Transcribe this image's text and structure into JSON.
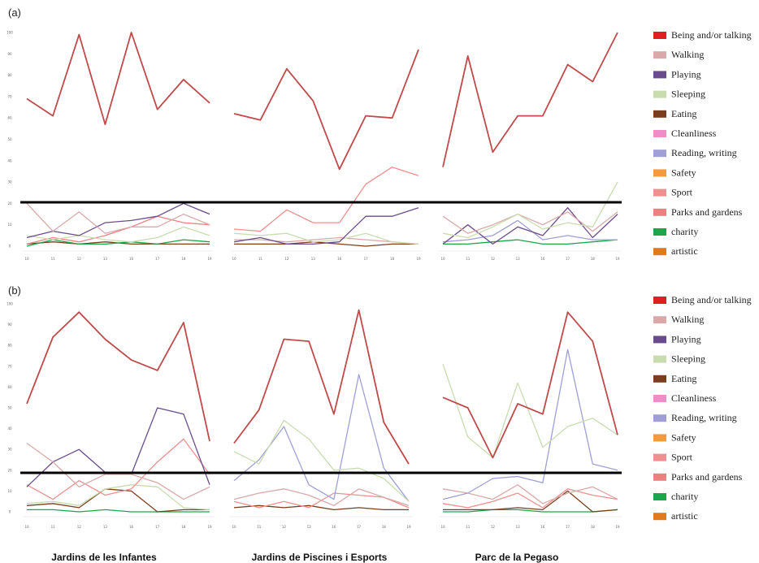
{
  "panels": [
    {
      "label": "(a)"
    },
    {
      "label": "(b)"
    }
  ],
  "sites": [
    "Jardins de les Infantes",
    "Jardins de Piscines i Esports",
    "Parc de la Pegaso"
  ],
  "legend": [
    {
      "name": "Being and/or talking",
      "color": "#e02020"
    },
    {
      "name": "Walking",
      "color": "#d9a9a9"
    },
    {
      "name": "Playing",
      "color": "#6a4c8c"
    },
    {
      "name": "Sleeping",
      "color": "#c9dcb0"
    },
    {
      "name": "Eating",
      "color": "#7a3e1e"
    },
    {
      "name": "Cleanliness",
      "color": "#f08cc8"
    },
    {
      "name": "Reading, writing",
      "color": "#9f9fd6"
    },
    {
      "name": "Safety",
      "color": "#f29a3c"
    },
    {
      "name": "Sport",
      "color": "#ef8f8f"
    },
    {
      "name": "Parks and gardens",
      "color": "#eb8080"
    },
    {
      "name": "charity",
      "color": "#1aa64a"
    },
    {
      "name": "artistic",
      "color": "#e07a1c"
    }
  ],
  "chart_data": [
    {
      "type": "line",
      "panel": "(a)",
      "y_ticks": [
        "0",
        "10",
        "20",
        "30",
        "40",
        "50",
        "60",
        "70",
        "80",
        "90",
        "100"
      ],
      "x_ticks": [
        "10",
        "11",
        "12",
        "13",
        "16",
        "17",
        "18",
        "19"
      ],
      "ylim": [
        0,
        100
      ],
      "subplots": [
        {
          "site": "Jardins de les Infantes",
          "series": [
            {
              "name": "Being and/or talking",
              "values": [
                69,
                61,
                99,
                57,
                100,
                64,
                78,
                67
              ]
            },
            {
              "name": "Walking",
              "values": [
                20,
                7,
                16,
                6,
                9,
                9,
                15,
                10
              ]
            },
            {
              "name": "Playing",
              "values": [
                4,
                7,
                5,
                11,
                12,
                14,
                20,
                15
              ]
            },
            {
              "name": "Sleeping",
              "values": [
                5,
                3,
                5,
                3,
                2,
                4,
                9,
                5
              ]
            },
            {
              "name": "Parks and gardens",
              "values": [
                1,
                4,
                2,
                5,
                9,
                14,
                11,
                10
              ]
            },
            {
              "name": "charity",
              "values": [
                0,
                3,
                1,
                1,
                2,
                1,
                3,
                2
              ]
            },
            {
              "name": "Eating",
              "values": [
                1,
                2,
                1,
                2,
                1,
                1,
                1,
                1
              ]
            }
          ]
        },
        {
          "site": "Jardins de Piscines i Esports",
          "series": [
            {
              "name": "Being and/or talking",
              "values": [
                62,
                59,
                83,
                68,
                36,
                61,
                60,
                92
              ]
            },
            {
              "name": "Sport",
              "values": [
                8,
                7,
                17,
                11,
                11,
                29,
                37,
                33
              ]
            },
            {
              "name": "Playing",
              "values": [
                2,
                4,
                1,
                1,
                2,
                14,
                14,
                18
              ]
            },
            {
              "name": "Sleeping",
              "values": [
                6,
                5,
                6,
                2,
                3,
                6,
                2,
                1
              ]
            },
            {
              "name": "Walking",
              "values": [
                3,
                3,
                2,
                3,
                4,
                3,
                2,
                1
              ]
            },
            {
              "name": "Eating",
              "values": [
                1,
                1,
                1,
                2,
                1,
                0,
                1,
                1
              ]
            }
          ]
        },
        {
          "site": "Parc de la Pegaso",
          "series": [
            {
              "name": "Being and/or talking",
              "values": [
                37,
                89,
                44,
                61,
                61,
                85,
                77,
                100
              ]
            },
            {
              "name": "Sleeping",
              "values": [
                6,
                4,
                9,
                15,
                8,
                11,
                9,
                30
              ]
            },
            {
              "name": "Walking",
              "values": [
                14,
                6,
                10,
                15,
                10,
                16,
                7,
                16
              ]
            },
            {
              "name": "Playing",
              "values": [
                1,
                10,
                1,
                9,
                5,
                18,
                4,
                15
              ]
            },
            {
              "name": "Reading, writing",
              "values": [
                2,
                3,
                5,
                12,
                3,
                5,
                3,
                3
              ]
            },
            {
              "name": "charity",
              "values": [
                1,
                1,
                2,
                3,
                1,
                1,
                2,
                3
              ]
            }
          ]
        }
      ]
    },
    {
      "type": "line",
      "panel": "(b)",
      "y_ticks": [
        "0",
        "10",
        "20",
        "30",
        "40",
        "50",
        "60",
        "70",
        "80",
        "90",
        "100"
      ],
      "x_ticks": [
        "10",
        "11",
        "12",
        "13",
        "16",
        "17",
        "18",
        "19"
      ],
      "ylim": [
        0,
        100
      ],
      "subplots": [
        {
          "site": "Jardins de les Infantes",
          "series": [
            {
              "name": "Being and/or talking",
              "values": [
                52,
                84,
                96,
                83,
                73,
                68,
                91,
                34
              ]
            },
            {
              "name": "Walking",
              "values": [
                33,
                24,
                12,
                18,
                18,
                14,
                6,
                12
              ]
            },
            {
              "name": "Playing",
              "values": [
                12,
                24,
                30,
                19,
                18,
                50,
                47,
                13
              ]
            },
            {
              "name": "Sport",
              "values": [
                13,
                6,
                15,
                8,
                11,
                24,
                35,
                18
              ]
            },
            {
              "name": "Sleeping",
              "values": [
                4,
                5,
                3,
                11,
                13,
                12,
                2,
                1
              ]
            },
            {
              "name": "Eating",
              "values": [
                3,
                4,
                2,
                11,
                10,
                0,
                1,
                1
              ]
            },
            {
              "name": "charity",
              "values": [
                1,
                1,
                0,
                1,
                0,
                0,
                0,
                0
              ]
            }
          ]
        },
        {
          "site": "Jardins de Piscines i Esports",
          "series": [
            {
              "name": "Being and/or talking",
              "values": [
                33,
                49,
                83,
                82,
                47,
                97,
                43,
                23
              ]
            },
            {
              "name": "Sleeping",
              "values": [
                29,
                23,
                44,
                35,
                20,
                21,
                16,
                5
              ]
            },
            {
              "name": "Reading, writing",
              "values": [
                15,
                25,
                41,
                13,
                6,
                66,
                21,
                5
              ]
            },
            {
              "name": "Walking",
              "values": [
                6,
                9,
                11,
                8,
                3,
                11,
                7,
                3
              ]
            },
            {
              "name": "Sport",
              "values": [
                5,
                2,
                5,
                2,
                9,
                8,
                7,
                2
              ]
            },
            {
              "name": "Eating",
              "values": [
                2,
                3,
                2,
                3,
                1,
                2,
                1,
                1
              ]
            }
          ]
        },
        {
          "site": "Parc de la Pegaso",
          "series": [
            {
              "name": "Being and/or talking",
              "values": [
                55,
                50,
                26,
                52,
                47,
                96,
                82,
                37
              ]
            },
            {
              "name": "Sleeping",
              "values": [
                71,
                36,
                26,
                62,
                31,
                41,
                45,
                37
              ]
            },
            {
              "name": "Reading, writing",
              "values": [
                6,
                9,
                16,
                17,
                14,
                78,
                23,
                20
              ]
            },
            {
              "name": "Walking",
              "values": [
                11,
                9,
                6,
                13,
                4,
                9,
                12,
                6
              ]
            },
            {
              "name": "Sport",
              "values": [
                4,
                2,
                5,
                9,
                2,
                11,
                8,
                6
              ]
            },
            {
              "name": "Eating",
              "values": [
                1,
                1,
                1,
                2,
                1,
                10,
                0,
                1
              ]
            },
            {
              "name": "charity",
              "values": [
                0,
                0,
                1,
                1,
                0,
                0,
                0,
                1
              ]
            }
          ]
        }
      ]
    }
  ]
}
